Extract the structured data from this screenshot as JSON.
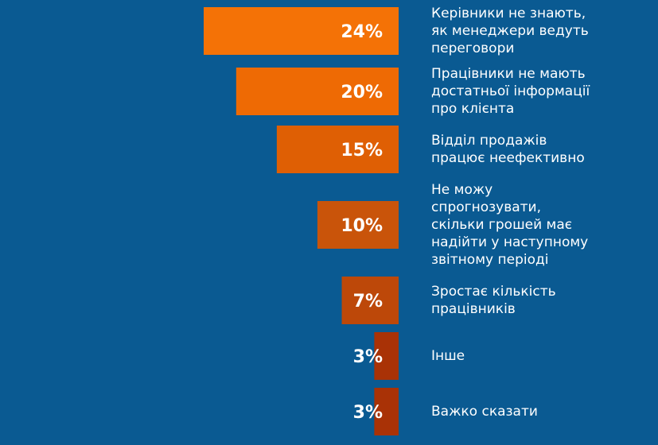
{
  "chart_data": {
    "type": "bar",
    "orientation": "horizontal",
    "categories": [
      [
        "Керівники не знають,",
        "як менеджери ведуть",
        "переговори"
      ],
      [
        "Працівники не мають",
        "достатньої інформації",
        "про клієнта"
      ],
      [
        "Відділ продажів",
        "працює неефективно"
      ],
      [
        "Не можу",
        "спрогнозувати,",
        "скільки грошей має",
        "надійти у наступному",
        "звітному періоді"
      ],
      [
        "Зростає кількість",
        "працівників"
      ],
      [
        "Інше"
      ],
      [
        "Важко сказати"
      ]
    ],
    "values": [
      24,
      20,
      15,
      10,
      7,
      3,
      3
    ],
    "value_labels": [
      "24%",
      "20%",
      "15%",
      "10%",
      "7%",
      "3%",
      "3%"
    ],
    "bar_colors": [
      "#f47206",
      "#ee6a04",
      "#df5f04",
      "#c9540a",
      "#bd4809",
      "#a93206",
      "#a93206"
    ],
    "background": "#0a5a92",
    "grid": false,
    "legend": "none"
  }
}
